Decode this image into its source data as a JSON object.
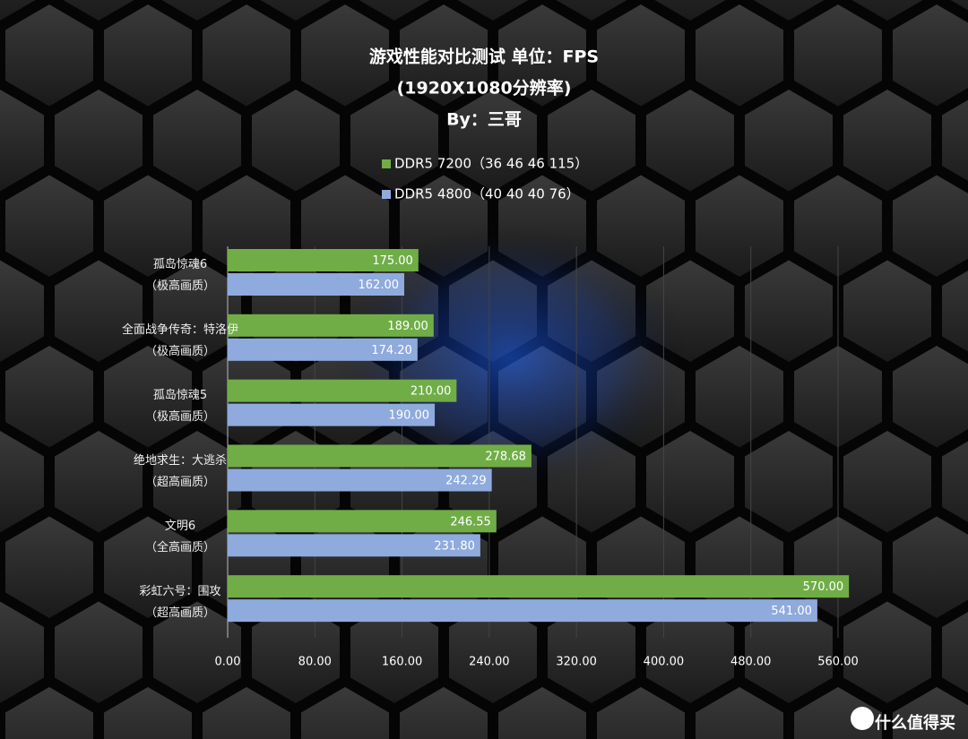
{
  "chart_data": {
    "type": "hbar",
    "title": "游戏性能对比测试 单位：FPS",
    "subtitle": "(1920X1080分辨率)",
    "byline": "By：三哥",
    "categories": [
      "孤岛惊魂6\n（极高画质）",
      "全面战争传奇：特洛伊\n（极高画质）",
      "孤岛惊魂5\n（极高画质）",
      "绝地求生：大逃杀\n（超高画质）",
      "文明6\n（全高画质）",
      "彩虹六号：围攻\n（超高画质）"
    ],
    "series": [
      {
        "name": "DDR5 7200（36 46 46 115）",
        "color": "#70ad47",
        "values": [
          175,
          189,
          210,
          278.68,
          246.55,
          570
        ],
        "value_labels": [
          "175.00",
          "189.00",
          "210.00",
          "278.68",
          "246.55",
          "570.00"
        ]
      },
      {
        "name": "DDR5 4800（40 40 40 76）",
        "color": "#8faadc",
        "values": [
          162,
          174.2,
          190,
          242.29,
          231.8,
          541
        ],
        "value_labels": [
          "162.00",
          "174.20",
          "190.00",
          "242.29",
          "231.80",
          "541.00"
        ]
      }
    ],
    "xlim": [
      0,
      560
    ],
    "xticks": [
      {
        "value": 0,
        "label": "0.00"
      },
      {
        "value": 80,
        "label": "80.00"
      },
      {
        "value": 160,
        "label": "160.00"
      },
      {
        "value": 240,
        "label": "240.00"
      },
      {
        "value": 320,
        "label": "320.00"
      },
      {
        "value": 400,
        "label": "400.00"
      },
      {
        "value": 480,
        "label": "480.00"
      },
      {
        "value": 560,
        "label": "560.00"
      }
    ],
    "grid": true,
    "watermark": "什么值得买"
  }
}
